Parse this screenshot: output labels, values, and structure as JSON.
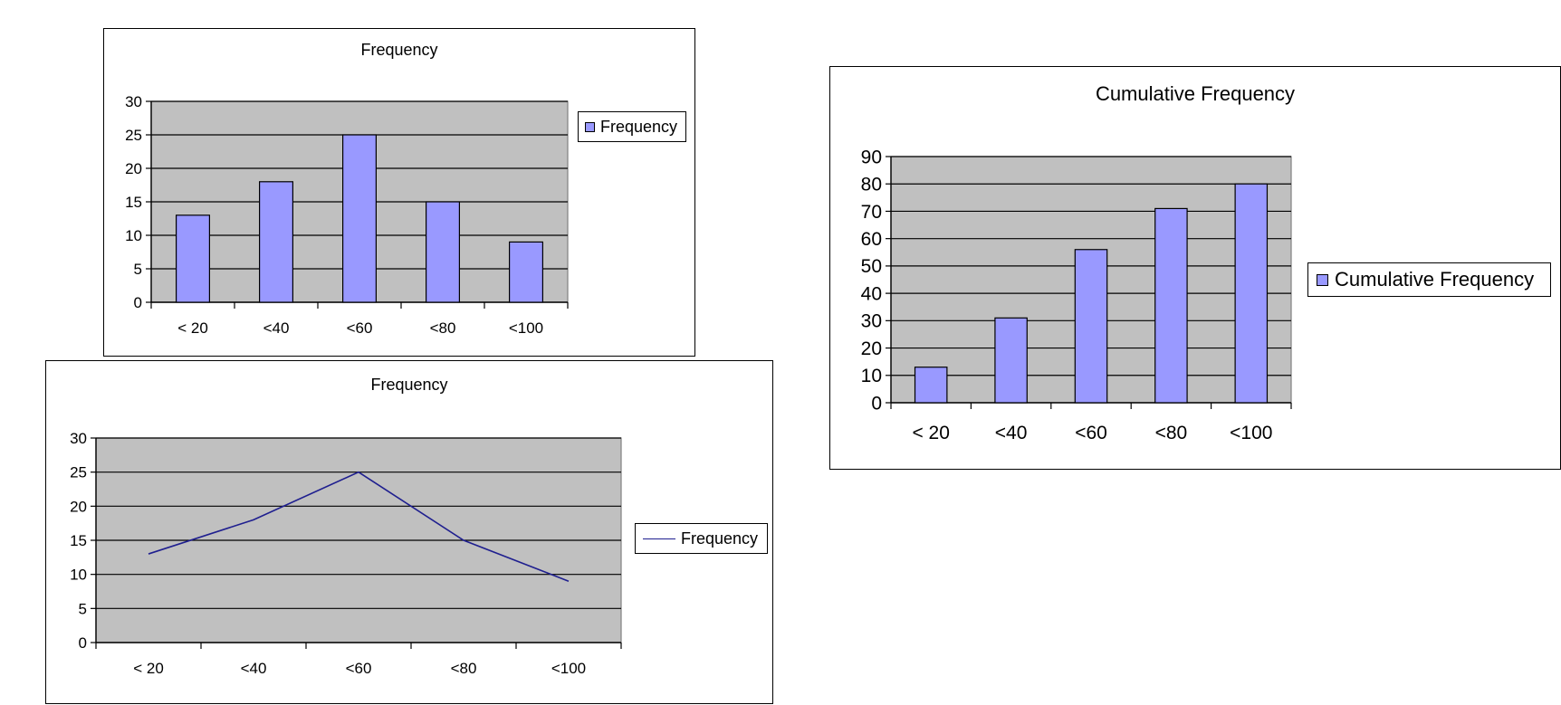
{
  "chart_data": [
    {
      "id": "freq-bar",
      "type": "bar",
      "title": "Frequency",
      "categories": [
        "< 20",
        "<40",
        "<60",
        "<80",
        "<100"
      ],
      "series": [
        {
          "name": "Frequency",
          "values": [
            13,
            18,
            25,
            15,
            9
          ]
        }
      ],
      "ylim": [
        0,
        30
      ],
      "yticks": [
        0,
        5,
        10,
        15,
        20,
        25,
        30
      ],
      "grid": true,
      "legend": "right",
      "colors": {
        "bar": "#9999ff",
        "plot_bg": "#c0c0c0"
      }
    },
    {
      "id": "freq-line",
      "type": "line",
      "title": "Frequency",
      "categories": [
        "< 20",
        "<40",
        "<60",
        "<80",
        "<100"
      ],
      "series": [
        {
          "name": "Frequency",
          "values": [
            13,
            18,
            25,
            15,
            9
          ]
        }
      ],
      "ylim": [
        0,
        30
      ],
      "yticks": [
        0,
        5,
        10,
        15,
        20,
        25,
        30
      ],
      "grid": true,
      "legend": "right",
      "colors": {
        "line": "#1f1f8f",
        "plot_bg": "#c0c0c0"
      }
    },
    {
      "id": "cum-bar",
      "type": "bar",
      "title": "Cumulative Frequency",
      "categories": [
        "< 20",
        "<40",
        "<60",
        "<80",
        "<100"
      ],
      "series": [
        {
          "name": "Cumulative Frequency",
          "values": [
            13,
            31,
            56,
            71,
            80
          ]
        }
      ],
      "ylim": [
        0,
        90
      ],
      "yticks": [
        0,
        10,
        20,
        30,
        40,
        50,
        60,
        70,
        80,
        90
      ],
      "grid": true,
      "legend": "right",
      "colors": {
        "bar": "#9999ff",
        "plot_bg": "#c0c0c0"
      }
    }
  ]
}
